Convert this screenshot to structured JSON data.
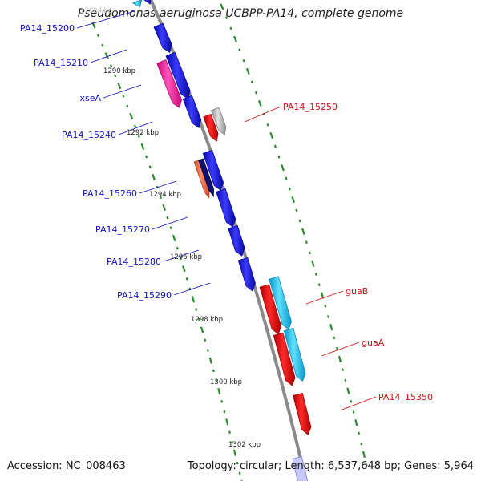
{
  "title": "Pseudomonas aeruginosa UCBPP-PA14, complete genome",
  "footer": {
    "accession": "Accession: NC_008463",
    "summary": "Topology: circular; Length: 6,537,648 bp; Genes: 5,964"
  },
  "colors": {
    "backbone": "#8c8c8c",
    "ticks": "#2a8a2a",
    "reverse_label": "#1010c0",
    "forward_label": "#d01010",
    "gene_blue": "#1a1ae6",
    "gene_magenta": "#ff33aa",
    "gene_salmon": "#ff7755",
    "gene_navy": "#101070",
    "gene_red": "#ee1111",
    "gene_silver": "#b8b8b8",
    "gene_cyan": "#22c8f0"
  },
  "kbp_ticks": [
    {
      "label": "1288 kbp",
      "faded": true
    },
    {
      "label": "1290 kbp"
    },
    {
      "label": "1292 kbp"
    },
    {
      "label": "1294 kbp"
    },
    {
      "label": "1296 kbp"
    },
    {
      "label": "1298 kbp"
    },
    {
      "label": "1300 kbp"
    },
    {
      "label": "1302 kbp"
    }
  ],
  "reverse_genes": [
    {
      "name": "PA14_15200"
    },
    {
      "name": "PA14_15210"
    },
    {
      "name": "xseA"
    },
    {
      "name": "PA14_15240"
    },
    {
      "name": "PA14_15260"
    },
    {
      "name": "PA14_15270"
    },
    {
      "name": "PA14_15280"
    },
    {
      "name": "PA14_15290"
    }
  ],
  "forward_genes": [
    {
      "name": "PA14_15250"
    },
    {
      "name": "guaB"
    },
    {
      "name": "guaA"
    },
    {
      "name": "PA14_15350"
    }
  ]
}
